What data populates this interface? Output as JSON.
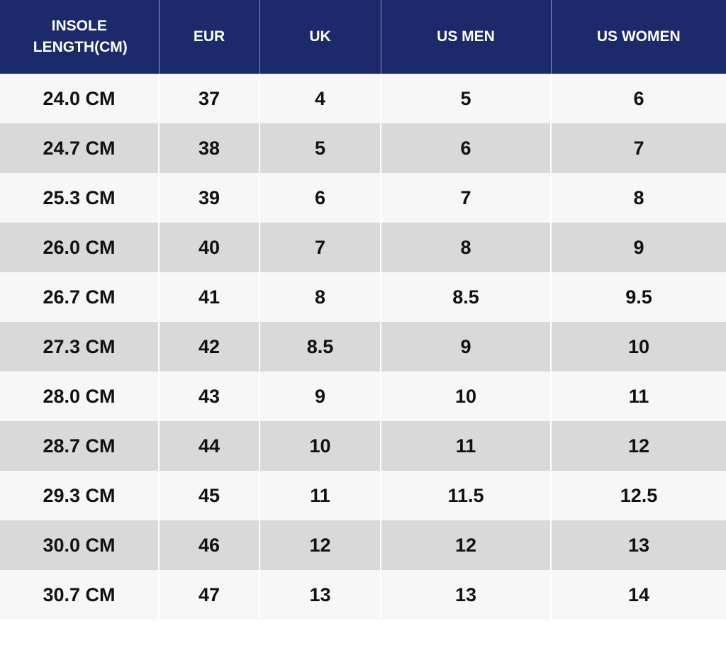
{
  "table": {
    "columns": [
      "INSOLE LENGTH(CM)",
      "EUR",
      "UK",
      "US MEN",
      "US WOMEN"
    ],
    "rows": [
      [
        "24.0 CM",
        37,
        4,
        5,
        6
      ],
      [
        "24.7 CM",
        38,
        5,
        6,
        7
      ],
      [
        "25.3 CM",
        39,
        6,
        7,
        8
      ],
      [
        "26.0 CM",
        40,
        7,
        8,
        9
      ],
      [
        "26.7 CM",
        41,
        8,
        8.5,
        9.5
      ],
      [
        "27.3 CM",
        42,
        8.5,
        9,
        10
      ],
      [
        "28.0 CM",
        43,
        9,
        10,
        11
      ],
      [
        "28.7 CM",
        44,
        10,
        11,
        12
      ],
      [
        "29.3 CM",
        45,
        11,
        11.5,
        12.5
      ],
      [
        "30.0 CM",
        46,
        12,
        12,
        13
      ],
      [
        "30.7 CM",
        47,
        13,
        13,
        14
      ]
    ]
  }
}
